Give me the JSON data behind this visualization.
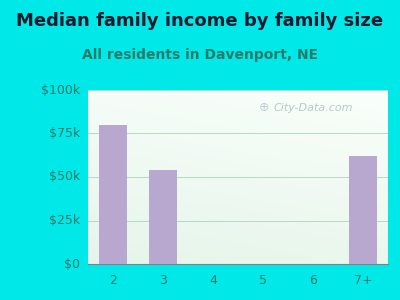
{
  "title": "Median family income by family size",
  "subtitle": "All residents in Davenport, NE",
  "categories": [
    "2",
    "3",
    "4",
    "5",
    "6",
    "7+"
  ],
  "values": [
    80000,
    54000,
    0,
    0,
    0,
    62000
  ],
  "bar_color": "#b8a8d0",
  "bg_color": "#00e8e8",
  "title_color": "#1a1a2e",
  "subtitle_color": "#2a7a6a",
  "tick_color": "#2a7a6a",
  "ytick_labels": [
    "$0",
    "$25k",
    "$50k",
    "$75k",
    "$100k"
  ],
  "ytick_values": [
    0,
    25000,
    50000,
    75000,
    100000
  ],
  "ylim": [
    0,
    100000
  ],
  "watermark": "City-Data.com",
  "title_fontsize": 13,
  "subtitle_fontsize": 10,
  "plot_bg_color_tl": "#e8f8f0",
  "plot_bg_color_br": "#d0eee0"
}
